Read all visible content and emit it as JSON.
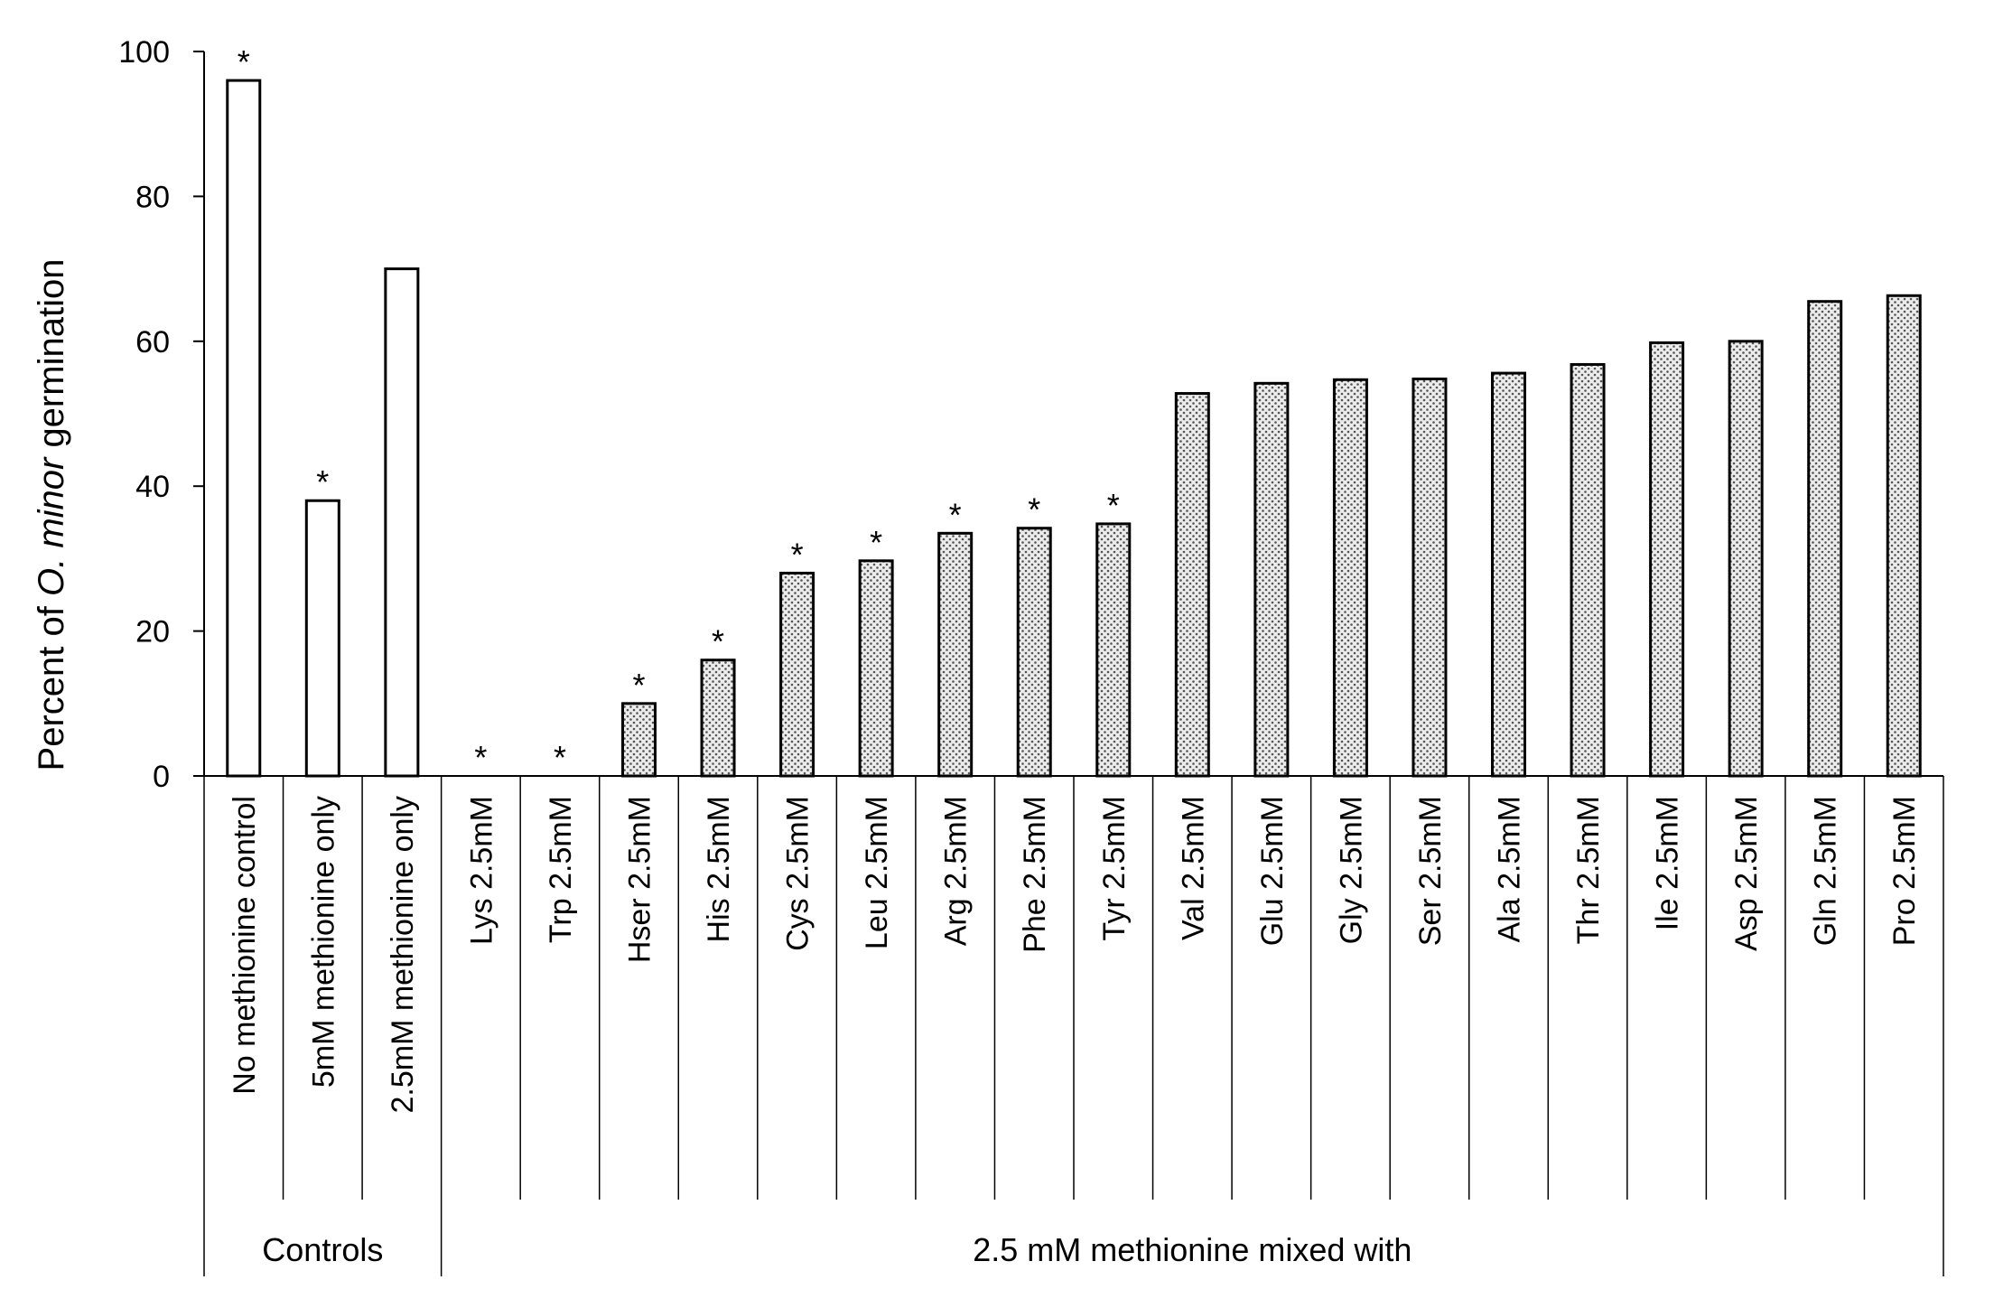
{
  "chart_data": {
    "type": "bar",
    "ylabel_prefix": "Percent of ",
    "ylabel_italic": "O. minor",
    "ylabel_suffix": " germination",
    "ylim": [
      0,
      100
    ],
    "yticks": [
      "0",
      "20",
      "40",
      "60",
      "80",
      "100"
    ],
    "grid": false,
    "legend": "none",
    "colors": {
      "bar_edge": "#000000",
      "control_fill": "#ffffff",
      "treatment_fill": "#d9d9d9",
      "dots": "#5a5a5a"
    },
    "categories": [
      "No methionine control",
      "5mM methionine only",
      "2.5mM methionine only",
      "Lys 2.5mM",
      "Trp 2.5mM",
      "Hser 2.5mM",
      "His 2.5mM",
      "Cys 2.5mM",
      "Leu 2.5mM",
      "Arg 2.5mM",
      "Phe 2.5mM",
      "Tyr 2.5mM",
      "Val 2.5mM",
      "Glu 2.5mM",
      "Gly 2.5mM",
      "Ser 2.5mM",
      "Ala 2.5mM",
      "Thr 2.5mM",
      "Ile 2.5mM",
      "Asp 2.5mM",
      "Gln 2.5mM",
      "Pro 2.5mM"
    ],
    "values": [
      96,
      38,
      70,
      0,
      0,
      10,
      16,
      28,
      29.7,
      33.5,
      34.2,
      34.8,
      52.8,
      54.2,
      54.7,
      54.8,
      55.6,
      56.8,
      59.8,
      60,
      65.5,
      66.3
    ],
    "significance_marker": "*",
    "significant": [
      true,
      true,
      false,
      true,
      true,
      true,
      true,
      true,
      true,
      true,
      true,
      true,
      false,
      false,
      false,
      false,
      false,
      false,
      false,
      false,
      false,
      false
    ],
    "groups": [
      {
        "label": "Controls",
        "start": 0,
        "end": 2,
        "style": "open"
      },
      {
        "label": "2.5 mM methionine mixed with",
        "start": 3,
        "end": 21,
        "style": "dotted"
      }
    ]
  }
}
